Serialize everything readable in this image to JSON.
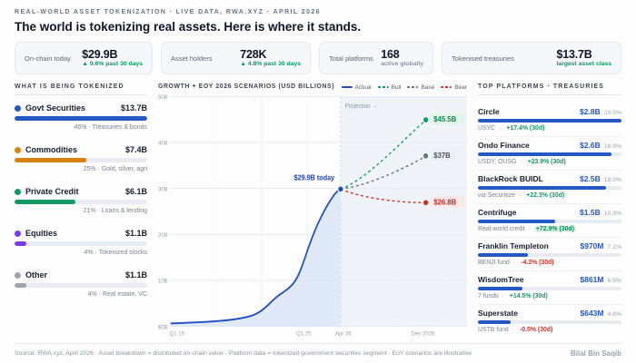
{
  "header": {
    "eyebrow": "REAL-WORLD ASSET TOKENIZATION · LIVE DATA, RWA.XYZ · APRIL 2026",
    "headline": "The world is tokenizing real assets. Here is where it stands."
  },
  "stats": [
    {
      "label": "On-chain today",
      "value": "$29.9B",
      "sub": "▲ 9.6% past 30 days",
      "sub_color": "#0f9b62"
    },
    {
      "label": "Asset holders",
      "value": "728K",
      "sub": "▲ 4.8% past 30 days",
      "sub_color": "#0f9b62"
    },
    {
      "label": "Total platforms",
      "value": "168",
      "sub": "active globally",
      "sub_color": "#8b95a1"
    },
    {
      "label": "Tokenised treasuries",
      "value": "$13.7B",
      "sub": "largest asset class",
      "sub_color": "#0f9b62"
    }
  ],
  "assets": {
    "title": "WHAT IS BEING TOKENIZED",
    "items": [
      {
        "name": "Govt Securities",
        "value": "$13.7B",
        "share": "46%",
        "detail": "Treasuries & bonds",
        "color": "#2458c5",
        "bar_pct": 100
      },
      {
        "name": "Commodities",
        "value": "$7.4B",
        "share": "25%",
        "detail": "Gold, silver, agri",
        "color": "#d9820f",
        "bar_pct": 54
      },
      {
        "name": "Private Credit",
        "value": "$6.1B",
        "share": "21%",
        "detail": "Loans & lending",
        "color": "#149a63",
        "bar_pct": 46
      },
      {
        "name": "Equities",
        "value": "$1.1B",
        "share": "4%",
        "detail": "Tokenized stocks",
        "color": "#7c3aed",
        "bar_pct": 9
      },
      {
        "name": "Other",
        "value": "$1.1B",
        "share": "4%",
        "detail": "Real estate, VC",
        "color": "#9ca3af",
        "bar_pct": 9
      }
    ]
  },
  "growth": {
    "title": "GROWTH + EOY 2026 SCENARIOS (USD BILLIONS)",
    "legend": [
      {
        "label": "Actual",
        "color": "#2050c0"
      },
      {
        "label": "Bull",
        "color": "#0f9b62"
      },
      {
        "label": "Base",
        "color": "#6b7280"
      },
      {
        "label": "Bear",
        "color": "#d03025"
      }
    ],
    "projection_label": "Projection →",
    "today_label": "$29.9B today",
    "yticks": [
      "$50B",
      "$40B",
      "$30B",
      "$20B",
      "$10B",
      "$0B"
    ],
    "xticks": [
      "Q1 19",
      "Q1 25",
      "Apr 26",
      "Dec 2026"
    ],
    "scenarios": [
      {
        "name": "Bull",
        "label": "$45.5B"
      },
      {
        "name": "Base",
        "label": "$37B"
      },
      {
        "name": "Bear",
        "label": "$26.8B"
      }
    ]
  },
  "platforms": {
    "title": "TOP PLATFORMS · TREASURIES",
    "items": [
      {
        "name": "Circle",
        "value": "$2.8B",
        "share": "20.5%",
        "sub": "USYC",
        "change": "+17.4% (30d)",
        "change_color": "#0f9b62",
        "change_bg": "transparent",
        "bar_pct": 100
      },
      {
        "name": "Ondo Finance",
        "value": "$2.6B",
        "share": "18.9%",
        "sub": "USDY, OUSG",
        "change": "+23.9% (30d)",
        "change_color": "#0f9b62",
        "change_bg": "transparent",
        "bar_pct": 93
      },
      {
        "name": "BlackRock BUIDL",
        "value": "$2.5B",
        "share": "18.0%",
        "sub": "via Securitize",
        "change": "+22.3% (30d)",
        "change_color": "#0f9b62",
        "change_bg": "transparent",
        "bar_pct": 89
      },
      {
        "name": "Centrifuge",
        "value": "$1.5B",
        "share": "10.9%",
        "sub": "Real-world credit",
        "change": "+72.9% (30d)",
        "change_color": "#0c8a55",
        "change_bg": "#dcf2e6",
        "bar_pct": 54
      },
      {
        "name": "Franklin Templeton",
        "value": "$970M",
        "share": "7.1%",
        "sub": "BENJI fund",
        "change": "-4.3% (30d)",
        "change_color": "#d03025",
        "change_bg": "transparent",
        "bar_pct": 35
      },
      {
        "name": "WisdomTree",
        "value": "$861M",
        "share": "6.5%",
        "sub": "7 funds",
        "change": "+14.5% (30d)",
        "change_color": "#0f9b62",
        "change_bg": "transparent",
        "bar_pct": 31
      },
      {
        "name": "Superstate",
        "value": "$643M",
        "share": "4.8%",
        "sub": "USTB fund",
        "change": "-0.5% (30d)",
        "change_color": "#d03025",
        "change_bg": "transparent",
        "bar_pct": 23
      }
    ]
  },
  "footer": {
    "left": "Source: RWA.xyz, April 2026 · Asset breakdown = distributed on-chain value · Platform data = tokenized government securities segment · EoY scenarios are illustrative",
    "right": "Bilal Bin Saqib"
  },
  "chart_data": [
    {
      "type": "area",
      "title": "GROWTH + EOY 2026 SCENARIOS (USD BILLIONS)",
      "ylabel": "USD billions",
      "ylim": [
        0,
        50
      ],
      "yticks": [
        0,
        10,
        20,
        30,
        40,
        50
      ],
      "xticks": [
        "Q1 19",
        "Q1 25",
        "Apr 26",
        "Dec 2026"
      ],
      "grid": true,
      "legend_position": "top-right",
      "series": [
        {
          "name": "Actual",
          "color": "#2050c0",
          "x": [
            "Q1 19",
            "Q1 20",
            "Q1 21",
            "Q1 22",
            "Q1 23",
            "Q1 24",
            "Q1 25",
            "Q4 25",
            "Apr 26"
          ],
          "values": [
            0.3,
            0.8,
            2,
            5,
            8.5,
            13,
            17.5,
            24,
            29.9
          ]
        }
      ],
      "projections": [
        {
          "name": "Bull",
          "from": {
            "x": "Apr 26",
            "value": 29.9
          },
          "to": {
            "x": "Dec 2026",
            "value": 45.5
          },
          "label": "$45.5B",
          "color": "#0f9b62"
        },
        {
          "name": "Base",
          "from": {
            "x": "Apr 26",
            "value": 29.9
          },
          "to": {
            "x": "Dec 2026",
            "value": 37
          },
          "label": "$37B",
          "color": "#6b7280"
        },
        {
          "name": "Bear",
          "from": {
            "x": "Apr 26",
            "value": 29.9
          },
          "to": {
            "x": "Dec 2026",
            "value": 26.8
          },
          "label": "$26.8B",
          "color": "#d03025"
        }
      ],
      "annotations": [
        "$29.9B today",
        "Projection →"
      ]
    },
    {
      "type": "bar",
      "title": "WHAT IS BEING TOKENIZED",
      "categories": [
        "Govt Securities",
        "Commodities",
        "Private Credit",
        "Equities",
        "Other"
      ],
      "values_usd_billions": [
        13.7,
        7.4,
        6.1,
        1.1,
        1.1
      ],
      "share_pct": [
        46,
        25,
        21,
        4,
        4
      ]
    },
    {
      "type": "bar",
      "title": "TOP PLATFORMS · TREASURIES",
      "categories": [
        "Circle",
        "Ondo Finance",
        "BlackRock BUIDL",
        "Centrifuge",
        "Franklin Templeton",
        "WisdomTree",
        "Superstate"
      ],
      "values": [
        "$2.8B",
        "$2.6B",
        "$2.5B",
        "$1.5B",
        "$970M",
        "$861M",
        "$643M"
      ],
      "share_pct": [
        20.5,
        18.9,
        18.0,
        10.9,
        7.1,
        6.5,
        4.8
      ],
      "change_30d_pct": [
        17.4,
        23.9,
        22.3,
        72.9,
        -4.3,
        14.5,
        -0.5
      ]
    }
  ]
}
